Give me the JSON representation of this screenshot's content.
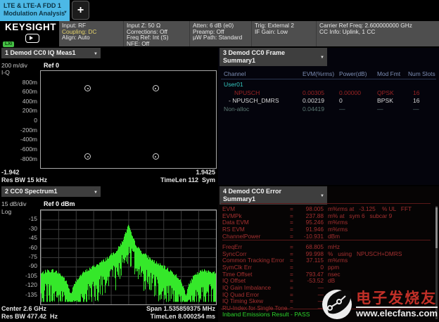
{
  "window": {
    "tab_line1": "LTE & LTE-A FDD 1",
    "tab_line2": "Modulation Analysis",
    "new_tab_label": "+",
    "brand": "KEYSIGHT",
    "lxi_badge": "LXI"
  },
  "header_columns": [
    {
      "lines": [
        {
          "text": "Input: RF"
        },
        {
          "text": "Coupling: DC",
          "accent": true
        },
        {
          "text": "Align: Auto"
        }
      ]
    },
    {
      "lines": [
        {
          "text": "Input Z: 50 Ω"
        },
        {
          "text": "Corrections: Off"
        },
        {
          "text": "Freq Ref: Int (S)"
        },
        {
          "text": "NFE: Off"
        }
      ]
    },
    {
      "lines": [
        {
          "text": "Atten: 6 dB (e0)"
        },
        {
          "text": "Preamp: Off"
        },
        {
          "text": "µW Path: Standard"
        }
      ]
    },
    {
      "lines": [
        {
          "text": "Trig: External 2"
        },
        {
          "text": "IF Gain: Low"
        }
      ]
    },
    {
      "lines": [
        {
          "text": "Carrier Ref Freq: 2.600000000 GHz"
        },
        {
          "text": "CC Info: Uplink, 1 CC"
        }
      ]
    }
  ],
  "panel_iq": {
    "title": "1 Demod CC0 IQ Meas1",
    "scale": "200 m/div",
    "trace_label": "I-Q",
    "ref_label": "Ref 0",
    "y_labels": [
      "800m",
      "600m",
      "400m",
      "200m",
      "0",
      "-200m",
      "-400m",
      "-600m",
      "-800m"
    ],
    "x_min": "-1.942",
    "x_max": "1.9425",
    "res_bw": "Res BW 15 kHz",
    "time_len": "TimeLen 112  Sym",
    "points": [
      {
        "x": 0.269,
        "y": 0.181
      },
      {
        "x": 0.655,
        "y": 0.181
      },
      {
        "x": 0.269,
        "y": 0.884
      },
      {
        "x": 0.655,
        "y": 0.884
      }
    ]
  },
  "panel_spectrum": {
    "title": "2 CC0 Spectrum1",
    "scale": "15 dB/div",
    "log_label": "Log",
    "ref_label": "Ref 0 dBm",
    "y_labels": [
      "-15",
      "-30",
      "-45",
      "-60",
      "-75",
      "-90",
      "-105",
      "-120",
      "-135"
    ],
    "center": "Center 2.6 GHz",
    "span": "Span 1.535859375 MHz",
    "res_bw": "Res BW 477.42  Hz",
    "time_len": "TimeLen 8.000254 ms"
  },
  "chart_data": {
    "type": "line",
    "title": "CC0 Spectrum1",
    "ylabel": "dBm",
    "ylim": [
      -150,
      0
    ],
    "scale_per_div": "15 dB",
    "x_center": "2.6 GHz",
    "x_span": "1.535859375 MHz",
    "legend_position": "none",
    "grid": true,
    "trace_color": "#35e82a",
    "envelope_dbm": [
      [
        0.0,
        -101
      ],
      [
        0.03,
        -97
      ],
      [
        0.07,
        -96
      ],
      [
        0.1,
        -100
      ],
      [
        0.13,
        -107
      ],
      [
        0.155,
        -120
      ],
      [
        0.17,
        -134
      ],
      [
        0.185,
        -122
      ],
      [
        0.21,
        -108
      ],
      [
        0.25,
        -98
      ],
      [
        0.3,
        -90
      ],
      [
        0.35,
        -82
      ],
      [
        0.4,
        -72
      ],
      [
        0.44,
        -62
      ],
      [
        0.465,
        -50
      ],
      [
        0.48,
        -40
      ],
      [
        0.493,
        -30
      ],
      [
        0.5,
        -24
      ],
      [
        0.507,
        -30
      ],
      [
        0.52,
        -40
      ],
      [
        0.535,
        -50
      ],
      [
        0.56,
        -62
      ],
      [
        0.6,
        -72
      ],
      [
        0.65,
        -82
      ],
      [
        0.7,
        -90
      ],
      [
        0.75,
        -98
      ],
      [
        0.79,
        -108
      ],
      [
        0.815,
        -122
      ],
      [
        0.83,
        -134
      ],
      [
        0.845,
        -120
      ],
      [
        0.87,
        -107
      ],
      [
        0.9,
        -100
      ],
      [
        0.93,
        -96
      ],
      [
        0.97,
        -97
      ],
      [
        1.0,
        -101
      ]
    ]
  },
  "panel_frame": {
    "title_line1": "3 Demod CC0 Frame",
    "title_line2": "Summary1",
    "headers": [
      "Channel",
      "EVM(%rms)",
      "Power(dB)",
      "Mod Fmt",
      "Num Slots"
    ],
    "rows": [
      {
        "channel": "User01",
        "evm": "",
        "power": "",
        "mod": "",
        "slots": "",
        "style": "user",
        "indent": 8
      },
      {
        "channel": "NPUSCH",
        "evm": "0.00305",
        "power": "0.00000",
        "mod": "QPSK",
        "slots": "16",
        "style": "alert",
        "indent": 23
      },
      {
        "channel": "- NPUSCH_DMRS",
        "evm": "0.00219",
        "power": "0",
        "mod": "BPSK",
        "slots": "16",
        "style": "normal",
        "indent": 15
      },
      {
        "channel": "Non-alloc",
        "evm": "0.04419",
        "power": "—",
        "mod": "—",
        "slots": "—",
        "style": "dim",
        "indent": 8
      }
    ]
  },
  "panel_error": {
    "title_line1": "4 Demod CC0 Error",
    "title_line2": "Summary1",
    "rows": [
      {
        "label": "EVM",
        "value": "98.005",
        "unit": "m%rms at   -3.125    % UL   FFT"
      },
      {
        "label": "EVMPk",
        "value": "237.88",
        "unit": "m% at   sym 6   subcar 9"
      },
      {
        "label": "Data EVM",
        "value": "95.246",
        "unit": "m%rms"
      },
      {
        "label": "RS EVM",
        "value": "91.946",
        "unit": "m%rms"
      },
      {
        "label": "ChannelPower",
        "value": "-10.931",
        "unit": "dBm"
      },
      {
        "divider": true
      },
      {
        "label": "FreqErr",
        "value": "68.805",
        "unit": "mHz"
      },
      {
        "label": "SyncCorr",
        "value": "99.998",
        "unit": "%   using   NPUSCH+DMRS"
      },
      {
        "label": "Common Tracking Error",
        "value": "37.115",
        "unit": "m%rms"
      },
      {
        "label": "SymClk Err",
        "value": "0",
        "unit": "ppm"
      },
      {
        "label": "Time Offset",
        "value": "793.47",
        "unit": "nsec"
      },
      {
        "label": "IQ Offset",
        "value": "-53.52",
        "unit": "dB"
      },
      {
        "label": "IQ Gain Imbalance",
        "value": "—",
        "unit": ""
      },
      {
        "label": "IQ Quad Error",
        "value": "—",
        "unit": ""
      },
      {
        "label": "IQ Timing Skew",
        "value": "—",
        "unit": ""
      },
      {
        "label": "RU-Index for Single Tone",
        "value": "—",
        "unit": ""
      }
    ],
    "result": "Inband Emissions Result - PASS"
  },
  "watermark": {
    "cn": "电子发烧友",
    "url": "www.elecfans.com"
  },
  "colors": {
    "tab_blue": "#4cb8e6",
    "accent_yellow": "#e3d26a",
    "trace_green": "#35e82a",
    "alert_red": "#9b2424",
    "teal": "#35c8c0",
    "pass_green": "#2bd42b"
  }
}
